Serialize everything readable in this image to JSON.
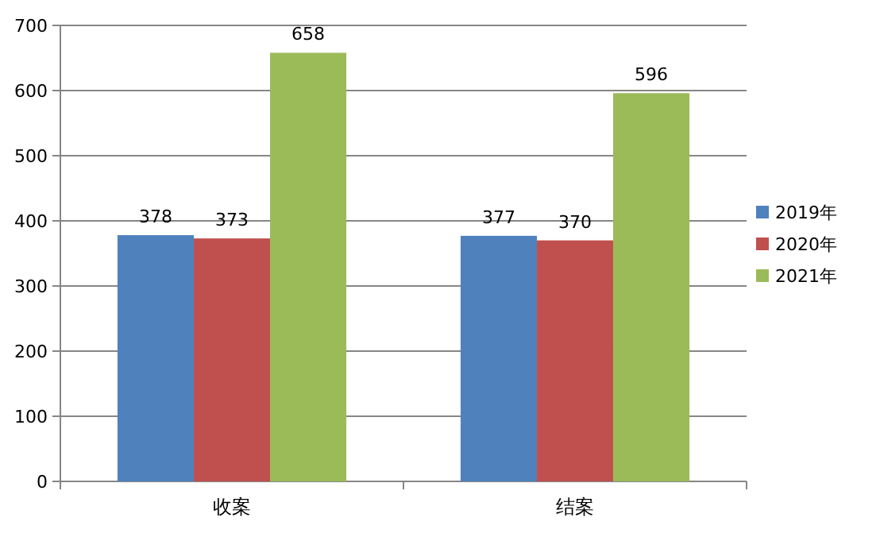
{
  "chart_data": {
    "type": "bar",
    "categories": [
      "收案",
      "结案"
    ],
    "series": [
      {
        "name": "2019年",
        "color": "#4f81bd",
        "values": [
          378,
          377
        ]
      },
      {
        "name": "2020年",
        "color": "#c0504d",
        "values": [
          373,
          370
        ]
      },
      {
        "name": "2021年",
        "color": "#9bbb59",
        "values": [
          658,
          596
        ]
      }
    ],
    "ylim": [
      0,
      700
    ],
    "yticks": [
      0,
      100,
      200,
      300,
      400,
      500,
      600,
      700
    ],
    "grid": "y",
    "legend": "right",
    "data_labels": true
  }
}
